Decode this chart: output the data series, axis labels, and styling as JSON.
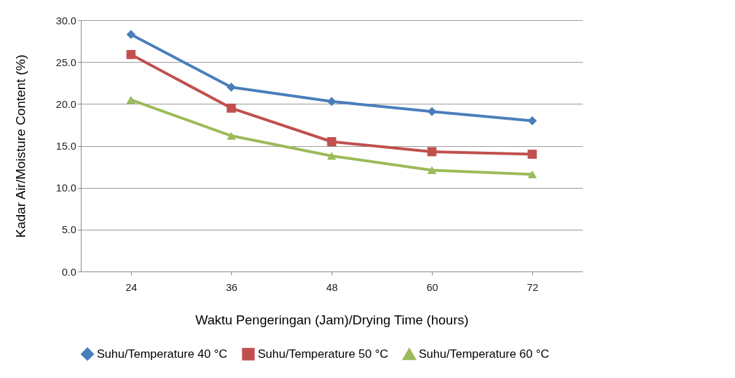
{
  "chart_data": {
    "type": "line",
    "xlabel": "Waktu Pengeringan (Jam)/Drying Time (hours)",
    "ylabel": "Kadar Air/Moisture Content (%)",
    "categories": [
      "24",
      "36",
      "48",
      "60",
      "72"
    ],
    "series": [
      {
        "name": "Suhu/Temperature 40 °C",
        "color": "#4a7ebb",
        "marker": "diamond",
        "values": [
          28.3,
          22.0,
          20.3,
          19.1,
          18.0
        ]
      },
      {
        "name": "Suhu/Temperature 50 °C",
        "color": "#c0504d",
        "marker": "square",
        "values": [
          25.9,
          19.5,
          15.5,
          14.3,
          14.0
        ]
      },
      {
        "name": "Suhu/Temperature 60 °C",
        "color": "#9bbb59",
        "marker": "triangle",
        "values": [
          20.5,
          16.2,
          13.8,
          12.1,
          11.6
        ]
      }
    ],
    "ylim": [
      0,
      30
    ],
    "yticks": [
      {
        "value": 0,
        "label": "0.0"
      },
      {
        "value": 5,
        "label": "5.0"
      },
      {
        "value": 10,
        "label": "10.0"
      },
      {
        "value": 15,
        "label": "15.0"
      },
      {
        "value": 20,
        "label": "20.0"
      },
      {
        "value": 25,
        "label": "25.0"
      },
      {
        "value": 30,
        "label": "30.0"
      }
    ],
    "grid": "y",
    "legend": "bottom",
    "line_style": "solid"
  }
}
